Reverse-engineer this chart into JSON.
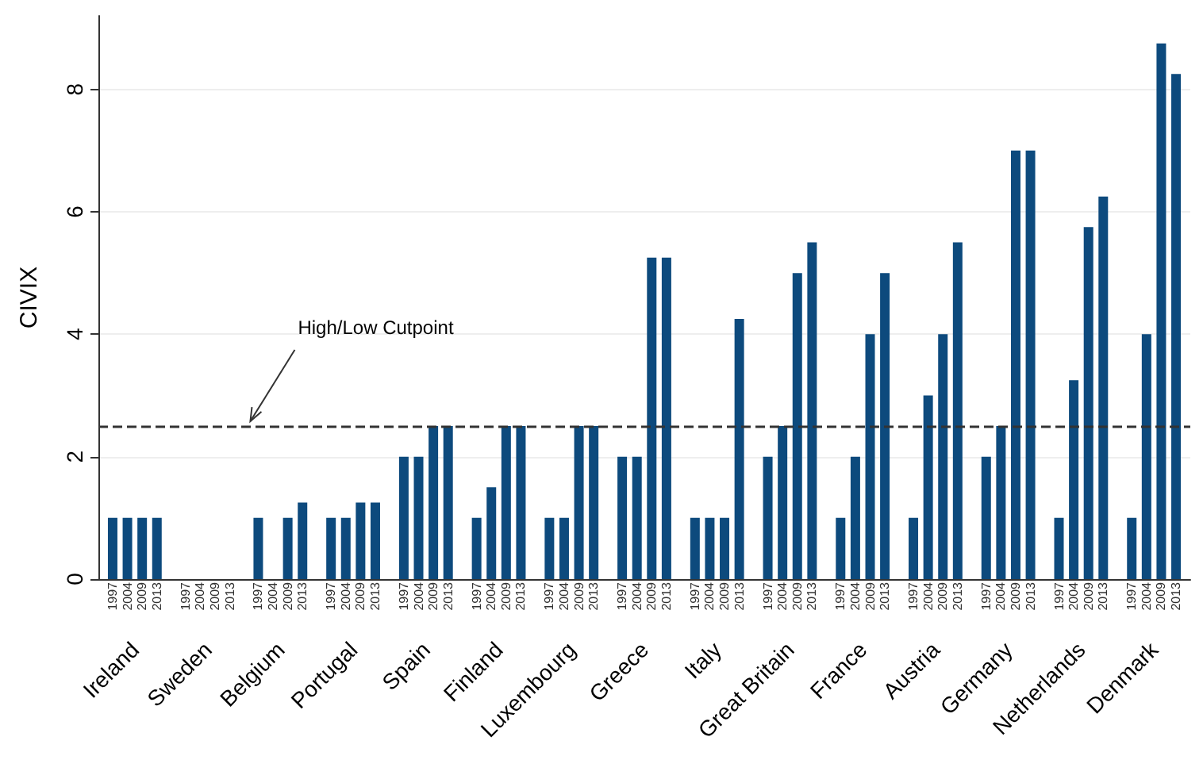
{
  "chart_data": {
    "type": "bar",
    "ylabel": "CIVIX",
    "categories": [
      "Ireland",
      "Sweden",
      "Belgium",
      "Portugal",
      "Spain",
      "Finland",
      "Luxembourg",
      "Greece",
      "Italy",
      "Great Britain",
      "France",
      "Austria",
      "Germany",
      "Netherlands",
      "Denmark"
    ],
    "series": [
      {
        "name": "1997",
        "color": "#0d4a7d",
        "values": [
          1,
          0,
          1,
          1,
          2,
          1,
          1,
          2,
          1,
          2,
          1,
          1,
          2,
          1,
          1
        ]
      },
      {
        "name": "2004",
        "color": "#0d4a7d",
        "values": [
          1,
          0,
          0,
          1,
          2,
          1.5,
          1,
          2,
          1,
          2.5,
          2,
          3,
          2.5,
          3.25,
          4
        ]
      },
      {
        "name": "2009",
        "color": "#0d4a7d",
        "values": [
          1,
          0,
          1,
          1.25,
          2.5,
          2.5,
          2.5,
          5.25,
          1,
          5,
          4,
          4,
          7,
          5.75,
          8.75
        ]
      },
      {
        "name": "2013",
        "color": "#0d4a7d",
        "values": [
          1,
          0,
          1.25,
          1.25,
          2.5,
          2.5,
          2.5,
          5.25,
          4.25,
          5.5,
          5,
          5.5,
          7,
          6.25,
          8.25
        ]
      }
    ],
    "ylim": [
      0,
      9.2
    ],
    "yticks": [
      0,
      2,
      4,
      6,
      8
    ],
    "grid": "y",
    "legend": false,
    "ref_lines": [
      {
        "axis": "y",
        "value": 2.5,
        "label": "High/Low Cutpoint",
        "color": "#333333",
        "line_style": "dashed"
      }
    ]
  }
}
